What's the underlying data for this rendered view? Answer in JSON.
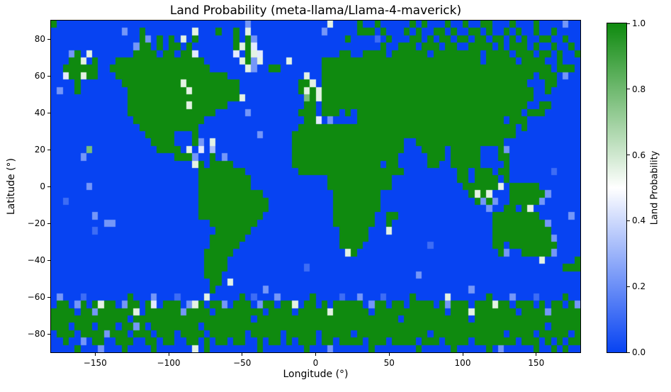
{
  "figure": {
    "background": "#ffffff"
  },
  "chart_data": {
    "type": "heatmap",
    "title": "Land Probability (meta-llama/Llama-4-maverick)",
    "xlabel": "Longitude (°)",
    "ylabel": "Latitude (°)",
    "xlim": [
      -180,
      180
    ],
    "ylim": [
      -90,
      90
    ],
    "grid_lines": false,
    "x_ticks": {
      "values": [
        -150,
        -100,
        -50,
        0,
        50,
        100,
        150
      ],
      "labels": [
        "−150",
        "−100",
        "−50",
        "0",
        "50",
        "100",
        "150"
      ]
    },
    "y_ticks": {
      "values": [
        80,
        60,
        40,
        20,
        0,
        -20,
        -40,
        -60,
        -80
      ],
      "labels": [
        "80",
        "60",
        "40",
        "20",
        "0",
        "−20",
        "−40",
        "−60",
        "−80"
      ]
    },
    "colorbar": {
      "label": "Land Probability",
      "min": 0.0,
      "max": 1.0,
      "tick_values": [
        0.0,
        0.2,
        0.4,
        0.6,
        0.8,
        1.0
      ],
      "tick_labels": [
        "0.0",
        "0.2",
        "0.4",
        "0.6",
        "0.8",
        "1.0"
      ],
      "color_low": "#0743f2",
      "color_mid": "#ffffff",
      "color_high": "#0f8a0f",
      "mid_value": 0.5
    },
    "grid": {
      "cols": 90,
      "rows": 45,
      "lon_start": -180,
      "lon_step": 4,
      "lat_start": 90,
      "lat_step": -4,
      "encoding": "each character digit d encodes land probability value = d/9 for the 4-degree cell",
      "rows_values": [
        "900000000000000000000000000000000200000000000005000090090000090900090090099000900090000200",
        "000000000000200900000000500090090500000000000020000099909000909009909009909009090090090000",
        "000000000000000920909050900000090920000000000000009000010900099090990990990990909009900900",
        "000000000000002990909909000000095940000000000000000000009009990999099009999090999090090090",
        "000290500000009999099099400000040954000000000000099009999099999909999999909999099909909009",
        "000995090009999999999999990000005925000050000099999999999999999999999999909999909999009 0",
        "009999990099999999999999999000000520099000000099999999999999999999999999999999999999909990",
        "004995990009999999999999999999000000000000050099999999999999999999999999999999999909990200",
        "000090000000999999999959999999990000000000995099999999999999999999999999999999999000990000",
        "020090000000099999999995999999990000000000959599999999999999999999999999999999999900900000",
        "000000000000099999999999999999995000000000079599999999999999999999999999999999999900000000",
        "000000000000099999999995999999000000000000099099999999999999999999999999999999999009900000 ",
        "000000000000099999999999999900000200000000999099909099999999999999999999999999990999000000",
        "000000000000009999999999990000000000000000099402000099999999999999999999999990999000000000",
        "000000000000000999999999900000000000000000999999999999999999999999999999999999909000000000",
        "000000000000000099999000900000000002000009999999999999999999999999999999999999900000000000",
        "000000000000000009999000920500000000000009999999999999999999009999999999999990000000000000",
        "000000700000000000999905040300000000000009999999999999999999000999909999900092000000000000",
        "000002000000000000000999200902000000000009999999999999999990000099909999900099000000000000",
        "000000000000000000000000590999900000000009999999999999990990000099009999900009000000000000",
        "000000000000000000000000099999999000000000999999999999999999000000000990999099000000010000",
        "000000000000000000000000099999999900000000000009999999999900000000000990999909000000000000",
        "000000200000000000000000099999999900000000000009999999999900000000000099999950999990000000",
        "000000000000000000000000099999999999000000000000999999990000000000000009595000999999200000",
        "001000000000000000000000099999999999900000000000999999990000000000000000929200999992000000",
        "000000000000000000000000099999999999900000000000999999990000000000000000002009909500000000",
        "000000020000000000000000099999999999000000000000999999900990000000000000000999999990000020",
        "000000000220000000000000000999999990000000000000999999900900000000000000000999999999200000 ",
        "000000010000000000000000000099999900000000000000099999000500000000000000000999999999900000 ",
        "000000000000000000000000000999999000000000000000099999000000000000000000000999999999920000 ",
        "000000000000000000000000000999990000000000000000099990000000000010000000000990999999990000 ",
        "000000000000000000000000009999900000000000000000005900000000000000000000000092009999920000 ",
        "000000000000000000000000009999000000000000000000000000000000000000000000000000000005000009 ",
        "000000000000000000000000009999000000000000010000000000000000000000000000000000000000000999",
        "000000000000000000000000009990000000000000000000000000000000002000000000000000000000000000",
        "000000000000000000000000000990500000000000000000000000000000000000000000000000000000000000",
        "000000000000000000000000000900000000200000000000000000000000000000000002000000000000000000",
        "020001000000090002000100005000009010002000009000010020001000090000050000009000200010000900",
        "099029095990299094099902590992099902990995099090999990299099099990929990999599099909099092",
        "999909929999995099999929999099999999099990999995999999099999999999909995999999909999299999",
        "999999999999909999999999999999999909999999999999999999999990999999999990999999999999999999",
        "999099909990992909999999909999999999999999999999999999999999999999999999999999999999099999",
        "099909999299909990999099990999999099999099999099999099999999999909999999999990999909999909",
        "009002099009990099099009909099099009099090999099099990999099990999099990999999909990909099",
        "000090002000900009000000509000000009000000090002000000900000009000009000009020000090090900"
      ]
    }
  }
}
